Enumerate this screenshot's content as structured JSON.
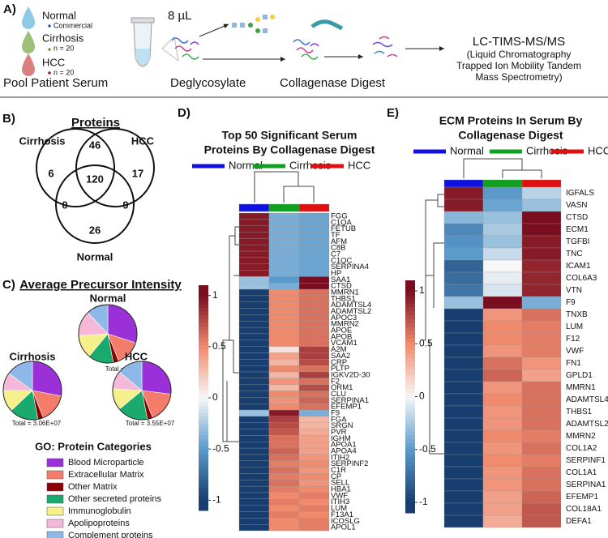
{
  "panel_a": {
    "label": "A)",
    "groups": [
      {
        "name": "Normal",
        "note": "Commercial",
        "color": "#2e5fa8"
      },
      {
        "name": "Cirrhosis",
        "note": "n = 20",
        "color": "#6a9e3b"
      },
      {
        "name": "HCC",
        "note": "n = 20",
        "color": "#a32020"
      }
    ],
    "volume": "8 µL",
    "steps": [
      "Pool Patient Serum",
      "Deglycosylate",
      "Collagenase Digest"
    ],
    "instrument": "LC-TIMS-MS/MS",
    "instrument_desc": [
      "(Liquid Chromatography",
      "Trapped Ion Mobility Tandem",
      "Mass Spectrometry)"
    ]
  },
  "panel_b": {
    "label": "B)",
    "title": "Proteins",
    "sets": [
      "Cirrhosis",
      "HCC",
      "Normal"
    ],
    "region_counts": [
      6,
      46,
      17,
      120,
      0,
      9,
      26
    ]
  },
  "chart_data": [
    {
      "type": "pie",
      "panel_label": "C)",
      "title": "Average Precursor Intensity",
      "legend_title": "GO: Protein Categories",
      "categories": [
        "Blood Microparticle",
        "Extracellular Matrix",
        "Other Matrix",
        "Other secreted proteins",
        "Immunoglobulin",
        "Apolipoproteins",
        "Complement proteins"
      ],
      "colors": [
        "#9b30d9",
        "#f47c6b",
        "#8b0000",
        "#1aaa70",
        "#f5f08a",
        "#f6b8d8",
        "#8db8e8"
      ],
      "pies": [
        {
          "name": "Normal",
          "total_label": "Total = 2.03E+07",
          "values": [
            30,
            14,
            3,
            14,
            13,
            14,
            12
          ]
        },
        {
          "name": "Cirrhosis",
          "total_label": "Total = 3.06E+07",
          "values": [
            28,
            16,
            3,
            16,
            12,
            10,
            15
          ]
        },
        {
          "name": "HCC",
          "total_label": "Total = 3.55E+07",
          "values": [
            27,
            17,
            3,
            17,
            12,
            10,
            14
          ]
        }
      ]
    },
    {
      "type": "heatmap",
      "panel_label": "D)",
      "title_lines": [
        "Top 50 Significant Serum",
        "Proteins By Collagenase Digest"
      ],
      "columns": [
        "Normal",
        "Cirrhosis",
        "HCC"
      ],
      "column_colors": [
        "#1010e0",
        "#10a020",
        "#e01010"
      ],
      "colors": [
        "#173e6f",
        "#5a9bcc",
        "#f7f7f7",
        "#ef8a6d",
        "#7a0d1f"
      ],
      "color_range": [
        -1,
        1
      ],
      "ylim": [
        -1.1,
        1.1
      ],
      "yticks": [
        -1,
        -0.5,
        0,
        0.5,
        1
      ],
      "rows": [
        "FGG",
        "C1QA",
        "FETUB",
        "TF",
        "AFM",
        "C8B",
        "C7",
        "C1QC",
        "SERPINA4",
        "HP",
        "SAA1",
        "CTSD",
        "MMRN1",
        "THBS1",
        "ADAMTSL4",
        "ADAMTSL2",
        "APOC3",
        "MMRN2",
        "APOE",
        "APOB",
        "VCAM1",
        "A2M",
        "SAA2",
        "CRP",
        "PLTP",
        "IGKV2D-30",
        "F2",
        "ORM1",
        "CLU",
        "SERPINA1",
        "EFEMP1",
        "F9",
        "FGA",
        "SRGN",
        "PVR",
        "IGHM",
        "APOA1",
        "APOA4",
        "ITIH2",
        "SERPINF2",
        "C1R",
        "CP",
        "SELL",
        "HBA1",
        "VWF",
        "ITIH3",
        "LUM",
        "F13A1",
        "ICOSLG",
        "APOL1"
      ],
      "values": [
        [
          0.95,
          -0.4,
          -0.45
        ],
        [
          0.95,
          -0.4,
          -0.45
        ],
        [
          0.95,
          -0.4,
          -0.45
        ],
        [
          0.95,
          -0.4,
          -0.45
        ],
        [
          0.95,
          -0.4,
          -0.45
        ],
        [
          0.95,
          -0.4,
          -0.45
        ],
        [
          0.95,
          -0.4,
          -0.45
        ],
        [
          0.95,
          -0.4,
          -0.45
        ],
        [
          0.95,
          -0.4,
          -0.45
        ],
        [
          0.95,
          -0.4,
          -0.45
        ],
        [
          -0.3,
          -0.5,
          1
        ],
        [
          -0.3,
          -0.4,
          1
        ],
        [
          -1,
          0.5,
          0.6
        ],
        [
          -1,
          0.5,
          0.6
        ],
        [
          -1,
          0.5,
          0.6
        ],
        [
          -1,
          0.5,
          0.6
        ],
        [
          -1,
          0.5,
          0.6
        ],
        [
          -1,
          0.5,
          0.6
        ],
        [
          -1,
          0.5,
          0.6
        ],
        [
          -1,
          0.5,
          0.6
        ],
        [
          -1,
          0.5,
          0.6
        ],
        [
          -1,
          0.1,
          0.8
        ],
        [
          -1,
          0.4,
          0.8
        ],
        [
          -1,
          0.3,
          0.75
        ],
        [
          -1,
          0.5,
          0.6
        ],
        [
          -1,
          0.3,
          0.8
        ],
        [
          -1,
          0.45,
          0.6
        ],
        [
          -1,
          0.3,
          0.75
        ],
        [
          -1,
          0.5,
          0.6
        ],
        [
          -1,
          0.45,
          0.65
        ],
        [
          -1,
          0.5,
          0.6
        ],
        [
          -0.3,
          0.95,
          -0.4
        ],
        [
          -1,
          0.8,
          0.3
        ],
        [
          -1,
          0.75,
          0.3
        ],
        [
          -1,
          0.7,
          0.35
        ],
        [
          -1,
          0.6,
          0.4
        ],
        [
          -1,
          0.6,
          0.4
        ],
        [
          -1,
          0.65,
          0.4
        ],
        [
          -1,
          0.6,
          0.45
        ],
        [
          -1,
          0.55,
          0.5
        ],
        [
          -1,
          0.6,
          0.45
        ],
        [
          -1,
          0.55,
          0.5
        ],
        [
          -1,
          0.6,
          0.45
        ],
        [
          -1,
          0.55,
          0.5
        ],
        [
          -1,
          0.5,
          0.55
        ],
        [
          -1,
          0.55,
          0.5
        ],
        [
          -1,
          0.5,
          0.55
        ],
        [
          -1,
          0.55,
          0.5
        ],
        [
          -1,
          0.5,
          0.55
        ],
        [
          -1,
          0.5,
          0.55
        ]
      ]
    },
    {
      "type": "heatmap",
      "panel_label": "E)",
      "title_lines": [
        "ECM Proteins In Serum By",
        "Collagenase Digest"
      ],
      "columns": [
        "Normal",
        "Cirrhosis",
        "HCC"
      ],
      "column_colors": [
        "#1010e0",
        "#10a020",
        "#e01010"
      ],
      "colors": [
        "#173e6f",
        "#5a9bcc",
        "#f7f7f7",
        "#ef8a6d",
        "#7a0d1f"
      ],
      "color_range": [
        -1,
        1
      ],
      "ylim": [
        -1.1,
        1.1
      ],
      "yticks": [
        -1,
        -0.5,
        0,
        0.5,
        1
      ],
      "rows": [
        "IGFALS",
        "VASN",
        "CTSD",
        "ECM1",
        "TGFBI",
        "TNC",
        "ICAM1",
        "COL6A3",
        "VTN",
        "F9",
        "TNXB",
        "LUM",
        "F12",
        "VWF",
        "FN1",
        "GPLD1",
        "MMRN1",
        "ADAMTSL4",
        "THBS1",
        "ADAMTSL2",
        "MMRN2",
        "COL1A2",
        "SERPINF1",
        "COL1A1",
        "SERPINA1",
        "EFEMP1",
        "COL18A1",
        "DEFA1"
      ],
      "values": [
        [
          0.95,
          -0.5,
          -0.2
        ],
        [
          0.95,
          -0.45,
          -0.3
        ],
        [
          -0.35,
          -0.3,
          1
        ],
        [
          -0.6,
          -0.25,
          1
        ],
        [
          -0.55,
          -0.3,
          0.95
        ],
        [
          -0.5,
          -0.15,
          0.95
        ],
        [
          -0.8,
          0,
          0.9
        ],
        [
          -0.75,
          -0.05,
          0.9
        ],
        [
          -0.7,
          -0.1,
          0.9
        ],
        [
          -0.3,
          1,
          -0.4
        ],
        [
          -1,
          0.45,
          0.6
        ],
        [
          -1,
          0.5,
          0.55
        ],
        [
          -1,
          0.5,
          0.55
        ],
        [
          -1,
          0.45,
          0.55
        ],
        [
          -1,
          0.6,
          0.45
        ],
        [
          -1,
          0.65,
          0.4
        ],
        [
          -1,
          0.45,
          0.6
        ],
        [
          -1,
          0.5,
          0.6
        ],
        [
          -1,
          0.45,
          0.6
        ],
        [
          -1,
          0.45,
          0.6
        ],
        [
          -1,
          0.5,
          0.55
        ],
        [
          -1,
          0.45,
          0.6
        ],
        [
          -1,
          0.5,
          0.55
        ],
        [
          -1,
          0.45,
          0.6
        ],
        [
          -1,
          0.45,
          0.6
        ],
        [
          -1,
          0.4,
          0.65
        ],
        [
          -1,
          0.4,
          0.7
        ],
        [
          -1,
          0.35,
          0.7
        ]
      ]
    }
  ]
}
